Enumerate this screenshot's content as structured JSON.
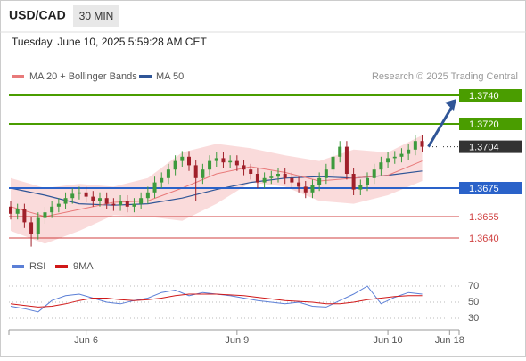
{
  "header": {
    "symbol": "USD/CAD",
    "interval": "30 MIN",
    "timestamp": "Tuesday, June 10, 2025 5:59:28 AM CET"
  },
  "chart_data": {
    "type": "candlestick",
    "source": "Research © 2025 Trading Central",
    "xlim": [
      0,
      65
    ],
    "xticks": [
      {
        "value": 11,
        "label": "Jun 6"
      },
      {
        "value": 33,
        "label": "Jun 9"
      },
      {
        "value": 55,
        "label": "Jun 10"
      },
      {
        "value": 64,
        "label": "Jun 18"
      }
    ],
    "ylim": [
      1.3626,
      1.3773
    ],
    "up_color": "#3d9a3d",
    "down_color": "#a0202a",
    "open": [
      1.3662,
      1.3657,
      1.366,
      1.3651,
      1.3643,
      1.3654,
      1.3658,
      1.3662,
      1.3664,
      1.3668,
      1.3671,
      1.3672,
      1.3669,
      1.3666,
      1.3668,
      1.3664,
      1.3663,
      1.3666,
      1.3662,
      1.3664,
      1.3668,
      1.3672,
      1.3679,
      1.3682,
      1.3688,
      1.3694,
      1.3697,
      1.3691,
      1.3682,
      1.3688,
      1.3694,
      1.3696,
      1.3693,
      1.3694,
      1.3691,
      1.3688,
      1.3685,
      1.3679,
      1.3682,
      1.3683,
      1.3685,
      1.3682,
      1.3679,
      1.3676,
      1.3672,
      1.3677,
      1.3682,
      1.3688,
      1.3697,
      1.3704,
      1.3685,
      1.3674,
      1.3677,
      1.3682,
      1.3688,
      1.3693,
      1.3696,
      1.3697,
      1.3699,
      1.3702,
      1.3708
    ],
    "high": [
      1.3666,
      1.3664,
      1.3664,
      1.3655,
      1.3658,
      1.3662,
      1.3666,
      1.3668,
      1.3672,
      1.3675,
      1.3676,
      1.3676,
      1.3673,
      1.3672,
      1.3672,
      1.3668,
      1.367,
      1.367,
      1.3668,
      1.3672,
      1.3676,
      1.3683,
      1.3686,
      1.3692,
      1.3698,
      1.3701,
      1.3701,
      1.3695,
      1.3692,
      1.3698,
      1.37,
      1.37,
      1.3698,
      1.3698,
      1.3695,
      1.3692,
      1.3689,
      1.3686,
      1.3687,
      1.3689,
      1.3689,
      1.3686,
      1.3683,
      1.368,
      1.3681,
      1.3686,
      1.3692,
      1.3701,
      1.3708,
      1.3708,
      1.3689,
      1.3681,
      1.3686,
      1.3692,
      1.3697,
      1.37,
      1.3701,
      1.3703,
      1.3706,
      1.3712,
      1.3712
    ],
    "low": [
      1.3653,
      1.3653,
      1.3647,
      1.3634,
      1.3639,
      1.365,
      1.3654,
      1.3658,
      1.366,
      1.3664,
      1.3667,
      1.3665,
      1.3662,
      1.3662,
      1.366,
      1.3659,
      1.3659,
      1.3658,
      1.3658,
      1.366,
      1.3664,
      1.3668,
      1.3675,
      1.3678,
      1.3684,
      1.369,
      1.3687,
      1.3666,
      1.3678,
      1.3684,
      1.369,
      1.3689,
      1.3689,
      1.3687,
      1.3684,
      1.3681,
      1.3675,
      1.3675,
      1.3678,
      1.3679,
      1.3678,
      1.3675,
      1.3672,
      1.3668,
      1.3668,
      1.3673,
      1.3678,
      1.3684,
      1.3693,
      1.3681,
      1.367,
      1.367,
      1.3673,
      1.3678,
      1.3684,
      1.3689,
      1.3692,
      1.3693,
      1.3695,
      1.3698,
      1.37
    ],
    "close": [
      1.3657,
      1.366,
      1.3651,
      1.3643,
      1.3654,
      1.3658,
      1.3662,
      1.3664,
      1.3668,
      1.3671,
      1.3672,
      1.3669,
      1.3666,
      1.3668,
      1.3664,
      1.3663,
      1.3666,
      1.3662,
      1.3664,
      1.3668,
      1.3672,
      1.3679,
      1.3682,
      1.3688,
      1.3694,
      1.3697,
      1.3691,
      1.3682,
      1.3688,
      1.3694,
      1.3696,
      1.3693,
      1.3694,
      1.3691,
      1.3688,
      1.3685,
      1.3679,
      1.3682,
      1.3683,
      1.3685,
      1.3682,
      1.3679,
      1.3676,
      1.3672,
      1.3677,
      1.3682,
      1.3688,
      1.3697,
      1.3704,
      1.3685,
      1.3674,
      1.3677,
      1.3682,
      1.3688,
      1.3693,
      1.3696,
      1.3697,
      1.3699,
      1.3702,
      1.3708,
      1.3704
    ],
    "ma20": {
      "name": "MA 20 + Bollinger Bands",
      "color": "#e87a7a",
      "band_color": "#f9d2d2",
      "x": [
        0,
        5,
        10,
        15,
        20,
        25,
        30,
        35,
        40,
        45,
        50,
        55,
        60
      ],
      "values": [
        1.3662,
        1.3655,
        1.366,
        1.3665,
        1.3666,
        1.3675,
        1.3685,
        1.369,
        1.3686,
        1.368,
        1.3682,
        1.3684,
        1.3694
      ],
      "upper": [
        1.3682,
        1.3675,
        1.3678,
        1.3676,
        1.3682,
        1.37,
        1.3706,
        1.3703,
        1.3698,
        1.3694,
        1.3702,
        1.37,
        1.3712
      ],
      "lower": [
        1.3645,
        1.3636,
        1.3645,
        1.3656,
        1.3655,
        1.3652,
        1.3664,
        1.3679,
        1.3676,
        1.3666,
        1.3664,
        1.367,
        1.368
      ]
    },
    "ma50": {
      "name": "MA 50",
      "color": "#2f5597",
      "x": [
        0,
        5,
        10,
        15,
        20,
        25,
        30,
        35,
        40,
        45,
        50,
        55,
        60
      ],
      "values": [
        1.3675,
        1.367,
        1.3664,
        1.3663,
        1.3664,
        1.3668,
        1.3674,
        1.3679,
        1.3682,
        1.3683,
        1.3682,
        1.3684,
        1.3687
      ]
    },
    "levels": [
      {
        "value": 1.374,
        "label": "1.3740",
        "color": "#4a9d00",
        "box": true,
        "dashed": false
      },
      {
        "value": 1.372,
        "label": "1.3720",
        "color": "#4a9d00",
        "box": true,
        "dashed": false
      },
      {
        "value": 1.3704,
        "color": "#333333",
        "box": true,
        "dashed": true
      },
      {
        "value": 1.3675,
        "color": "#2a62c9",
        "box": true,
        "dashed": false
      },
      {
        "value": 1.3655,
        "color": "#d04040",
        "box": false,
        "dashed": false
      },
      {
        "value": 1.364,
        "label": "1.3640",
        "color": "#d04040",
        "box": false,
        "dashed": false
      }
    ],
    "rsi": {
      "ylim": [
        15,
        82
      ],
      "yticks": [
        70,
        50,
        30
      ],
      "series": [
        {
          "name": "RSI",
          "color": "#5b7fd6",
          "x": [
            0,
            2,
            4,
            6,
            8,
            10,
            12,
            14,
            16,
            18,
            20,
            22,
            24,
            26,
            28,
            30,
            32,
            34,
            36,
            38,
            40,
            42,
            44,
            46,
            48,
            50,
            52,
            54,
            56,
            58,
            60
          ],
          "values": [
            45,
            42,
            38,
            52,
            58,
            60,
            55,
            50,
            48,
            52,
            55,
            62,
            65,
            58,
            62,
            60,
            58,
            55,
            52,
            50,
            48,
            50,
            45,
            44,
            52,
            60,
            70,
            48,
            56,
            62,
            60
          ]
        },
        {
          "name": "9MA",
          "color": "#d01818",
          "x": [
            0,
            2,
            4,
            6,
            8,
            10,
            12,
            14,
            16,
            18,
            20,
            22,
            24,
            26,
            28,
            30,
            32,
            34,
            36,
            38,
            40,
            42,
            44,
            46,
            48,
            50,
            52,
            54,
            56,
            58,
            60
          ],
          "values": [
            48,
            46,
            44,
            45,
            48,
            52,
            55,
            55,
            53,
            52,
            53,
            55,
            58,
            60,
            60,
            60,
            59,
            58,
            56,
            54,
            52,
            51,
            50,
            48,
            48,
            50,
            53,
            55,
            57,
            58,
            58
          ]
        }
      ]
    }
  }
}
